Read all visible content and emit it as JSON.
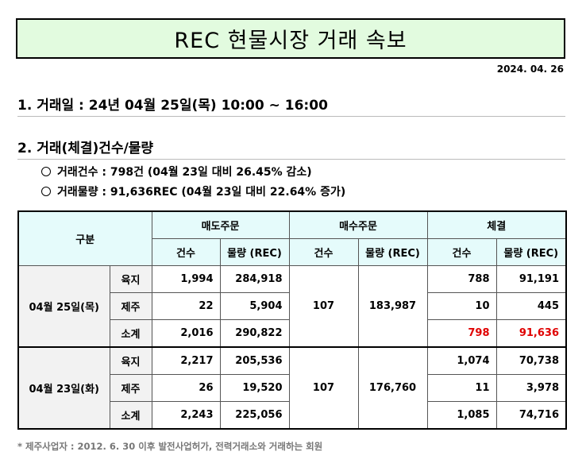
{
  "title": "REC 현물시장 거래 속보",
  "date": "2024. 04. 26",
  "section1": "1. 거래일 :  24년 04월 25일(목) 10:00 ~ 16:00",
  "section2": "2. 거래(체결)건수/물량",
  "bullets": [
    "거래건수 : 798건 (04월 23일 대비 26.45% 감소)",
    "거래물량 : 91,636REC (04월 23일 대비 22.64% 증가)"
  ],
  "table": {
    "category": "구분",
    "groups": [
      "매도주문",
      "매수주문",
      "체결"
    ],
    "sub": [
      "건수",
      "물량 (REC)",
      "건수",
      "물량 (REC)",
      "건수",
      "물량 (REC)"
    ],
    "blocks": [
      {
        "date": "04월 25일(목)",
        "buy_count": "107",
        "buy_volume": "183,987",
        "rows": [
          {
            "type": "육지",
            "sell_count": "1,994",
            "sell_volume": "284,918",
            "deal_count": "788",
            "deal_volume": "91,191"
          },
          {
            "type": "제주",
            "sell_count": "22",
            "sell_volume": "5,904",
            "deal_count": "10",
            "deal_volume": "445"
          },
          {
            "type": "소계",
            "sell_count": "2,016",
            "sell_volume": "290,822",
            "deal_count": "798",
            "deal_volume": "91,636"
          }
        ]
      },
      {
        "date": "04월 23일(화)",
        "buy_count": "107",
        "buy_volume": "176,760",
        "rows": [
          {
            "type": "육지",
            "sell_count": "2,217",
            "sell_volume": "205,536",
            "deal_count": "1,074",
            "deal_volume": "70,738"
          },
          {
            "type": "제주",
            "sell_count": "26",
            "sell_volume": "19,520",
            "deal_count": "11",
            "deal_volume": "3,978"
          },
          {
            "type": "소계",
            "sell_count": "2,243",
            "sell_volume": "225,056",
            "deal_count": "1,085",
            "deal_volume": "74,716"
          }
        ]
      }
    ]
  },
  "footnote": "* 제주사업자 : 2012. 6. 30 이후 발전사업허가, 전력거래소와 거래하는 회원",
  "colors": {
    "title_bg": "#e2fbdf",
    "header_bg": "#e5fbfb",
    "highlight": "#e00000"
  }
}
